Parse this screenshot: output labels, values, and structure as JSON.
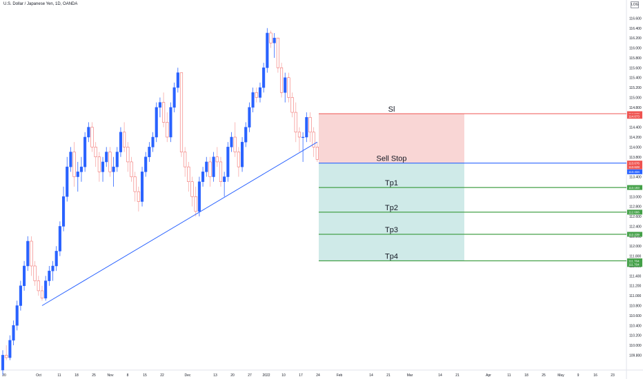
{
  "title": "U.S. Dollar / Japanese Yen, 1D, OANDA",
  "scale_button": "LOG",
  "colors": {
    "up": "#2962ff",
    "down": "#f7a9a7",
    "down_border": "#ef5350",
    "trendline": "#2962ff",
    "stop_zone": "#f9d6d5",
    "profit_zone": "#cfeae8",
    "sl_line": "#ef5350",
    "entry_line": "#2962ff",
    "tp_line": "#43a047"
  },
  "chart_data": {
    "type": "candlestick",
    "symbol": "USDJPY",
    "ylim": [
      109.5,
      116.8
    ],
    "y_ticks": [
      "109.800",
      "110.000",
      "110.200",
      "110.400",
      "110.600",
      "110.800",
      "111.000",
      "111.200",
      "111.400",
      "111.600",
      "111.800",
      "112.000",
      "112.200",
      "112.400",
      "112.600",
      "112.800",
      "113.000",
      "113.200",
      "113.400",
      "113.600",
      "113.800",
      "114.000",
      "114.200",
      "114.400",
      "114.600",
      "114.800",
      "115.000",
      "115.200",
      "115.400",
      "115.600",
      "115.800",
      "116.000",
      "116.200",
      "116.400",
      "116.600"
    ],
    "x_labels": [
      "20",
      "Oct",
      "11",
      "18",
      "25",
      "Nov",
      "8",
      "15",
      "22",
      "Dec",
      "13",
      "20",
      "27",
      "2022",
      "10",
      "17",
      "24",
      "Feb",
      "14",
      "21",
      "Mar",
      "14",
      "21",
      "Apr",
      "11",
      "18",
      "25",
      "May",
      "9",
      "16",
      "23"
    ],
    "candles": [
      [
        109.5,
        109.9,
        109.4,
        109.8
      ],
      [
        109.8,
        110.0,
        109.7,
        109.75
      ],
      [
        109.75,
        110.2,
        109.7,
        110.1
      ],
      [
        110.1,
        110.5,
        110.0,
        110.4
      ],
      [
        110.4,
        110.9,
        110.3,
        110.8
      ],
      [
        110.8,
        111.3,
        110.7,
        111.2
      ],
      [
        111.2,
        111.7,
        111.1,
        111.6
      ],
      [
        111.6,
        112.2,
        111.5,
        112.1
      ],
      [
        112.1,
        112.2,
        111.4,
        111.6
      ],
      [
        111.6,
        111.7,
        111.2,
        111.3
      ],
      [
        111.3,
        111.4,
        111.0,
        111.1
      ],
      [
        111.1,
        111.2,
        110.9,
        110.95
      ],
      [
        110.95,
        111.4,
        110.9,
        111.3
      ],
      [
        111.3,
        111.6,
        111.2,
        111.5
      ],
      [
        111.5,
        111.7,
        111.3,
        111.6
      ],
      [
        111.6,
        112.0,
        111.5,
        111.9
      ],
      [
        111.9,
        112.5,
        111.8,
        112.4
      ],
      [
        112.4,
        113.2,
        112.3,
        113.0
      ],
      [
        113.0,
        113.8,
        112.9,
        113.6
      ],
      [
        113.6,
        114.0,
        113.5,
        113.9
      ],
      [
        113.9,
        114.1,
        113.2,
        113.4
      ],
      [
        113.4,
        113.7,
        113.1,
        113.5
      ],
      [
        113.5,
        113.8,
        113.3,
        113.6
      ],
      [
        113.6,
        114.3,
        113.5,
        114.2
      ],
      [
        114.2,
        114.5,
        114.1,
        114.4
      ],
      [
        114.4,
        114.5,
        113.9,
        114.0
      ],
      [
        114.0,
        114.1,
        113.6,
        113.8
      ],
      [
        113.8,
        113.9,
        113.3,
        113.5
      ],
      [
        113.5,
        113.8,
        113.3,
        113.7
      ],
      [
        113.7,
        114.0,
        113.6,
        113.9
      ],
      [
        113.9,
        114.0,
        113.4,
        113.5
      ],
      [
        113.5,
        113.8,
        113.2,
        113.6
      ],
      [
        113.6,
        114.0,
        113.5,
        113.9
      ],
      [
        113.9,
        114.4,
        113.8,
        114.3
      ],
      [
        114.3,
        114.5,
        113.9,
        114.0
      ],
      [
        114.0,
        114.1,
        113.5,
        113.7
      ],
      [
        113.7,
        113.8,
        113.3,
        113.4
      ],
      [
        113.4,
        113.5,
        112.9,
        113.1
      ],
      [
        113.1,
        113.2,
        112.7,
        112.9
      ],
      [
        112.9,
        113.6,
        112.8,
        113.5
      ],
      [
        113.5,
        113.9,
        113.4,
        113.8
      ],
      [
        113.8,
        114.1,
        113.7,
        114.0
      ],
      [
        114.0,
        114.3,
        113.9,
        114.2
      ],
      [
        114.2,
        114.9,
        114.1,
        114.8
      ],
      [
        114.8,
        115.0,
        114.6,
        114.9
      ],
      [
        114.9,
        115.1,
        114.4,
        114.5
      ],
      [
        114.5,
        114.7,
        114.1,
        114.2
      ],
      [
        114.2,
        114.9,
        114.1,
        114.8
      ],
      [
        114.8,
        115.3,
        114.7,
        115.2
      ],
      [
        115.2,
        115.6,
        115.1,
        115.5
      ],
      [
        115.5,
        115.5,
        113.8,
        113.9
      ],
      [
        113.9,
        114.0,
        113.4,
        113.6
      ],
      [
        113.6,
        113.7,
        113.1,
        113.3
      ],
      [
        113.3,
        113.4,
        112.8,
        113.0
      ],
      [
        113.0,
        113.2,
        112.6,
        112.7
      ],
      [
        112.7,
        113.4,
        112.6,
        113.3
      ],
      [
        113.3,
        113.6,
        113.2,
        113.5
      ],
      [
        113.5,
        113.8,
        113.4,
        113.7
      ],
      [
        113.7,
        113.8,
        113.2,
        113.4
      ],
      [
        113.4,
        113.9,
        113.3,
        113.8
      ],
      [
        113.8,
        114.0,
        113.6,
        113.7
      ],
      [
        113.7,
        113.8,
        113.2,
        113.3
      ],
      [
        113.3,
        113.5,
        113.0,
        113.4
      ],
      [
        113.4,
        114.1,
        113.3,
        114.0
      ],
      [
        114.0,
        114.3,
        113.9,
        114.2
      ],
      [
        114.2,
        114.5,
        113.8,
        113.9
      ],
      [
        113.9,
        114.0,
        113.4,
        113.6
      ],
      [
        113.6,
        114.2,
        113.5,
        114.1
      ],
      [
        114.1,
        114.5,
        114.0,
        114.4
      ],
      [
        114.4,
        114.9,
        114.3,
        114.8
      ],
      [
        114.8,
        115.2,
        114.7,
        115.1
      ],
      [
        115.1,
        115.2,
        114.9,
        115.0
      ],
      [
        115.0,
        115.3,
        114.9,
        115.2
      ],
      [
        115.2,
        115.7,
        115.1,
        115.6
      ],
      [
        115.6,
        116.4,
        115.5,
        116.3
      ],
      [
        116.3,
        116.35,
        116.0,
        116.1
      ],
      [
        116.1,
        116.3,
        115.8,
        116.2
      ],
      [
        116.2,
        116.2,
        115.5,
        115.6
      ],
      [
        115.6,
        115.7,
        115.0,
        115.1
      ],
      [
        115.1,
        115.5,
        114.9,
        115.4
      ],
      [
        115.4,
        115.5,
        114.9,
        115.0
      ],
      [
        115.0,
        115.1,
        114.6,
        114.7
      ],
      [
        114.7,
        114.9,
        114.1,
        114.3
      ],
      [
        114.3,
        114.4,
        113.9,
        114.2
      ],
      [
        114.2,
        114.3,
        113.7,
        114.2
      ],
      [
        114.2,
        114.7,
        114.1,
        114.6
      ],
      [
        114.6,
        114.7,
        114.1,
        114.3
      ],
      [
        114.3,
        114.4,
        113.8,
        114.0
      ],
      [
        114.0,
        114.1,
        113.7,
        113.75
      ]
    ],
    "trendline": {
      "from": {
        "candle": 11,
        "price": 110.8
      },
      "to": {
        "candle": 88,
        "price": 114.1
      }
    },
    "position": {
      "type": "short",
      "stop_loss": 114.673,
      "entry": 113.676,
      "take_profits": [
        113.183,
        112.686,
        112.239,
        111.704
      ],
      "labels": {
        "sl": "Sl",
        "entry": "Sell Stop",
        "tp": [
          "Tp1",
          "Tp2",
          "Tp3",
          "Tp4"
        ]
      }
    },
    "price_badges": [
      {
        "text": "114.673",
        "price": 114.673,
        "color": "#ef5350"
      },
      {
        "text": "114.673",
        "price": 114.62,
        "color": "#ef5350"
      },
      {
        "text": "113.676",
        "price": 113.676,
        "color": "#ef5350"
      },
      {
        "text": "113.434",
        "price": 113.5,
        "color": "#2962ff"
      },
      {
        "text": "113.628",
        "price": 113.6,
        "color": "#ef5350"
      },
      {
        "text": "113.183",
        "price": 113.183,
        "color": "#43a047"
      },
      {
        "text": "112.686",
        "price": 112.686,
        "color": "#43a047"
      },
      {
        "text": "112.239",
        "price": 112.239,
        "color": "#43a047"
      },
      {
        "text": "111.704",
        "price": 111.704,
        "color": "#43a047"
      },
      {
        "text": "111.704",
        "price": 111.63,
        "color": "#43a047"
      }
    ]
  }
}
